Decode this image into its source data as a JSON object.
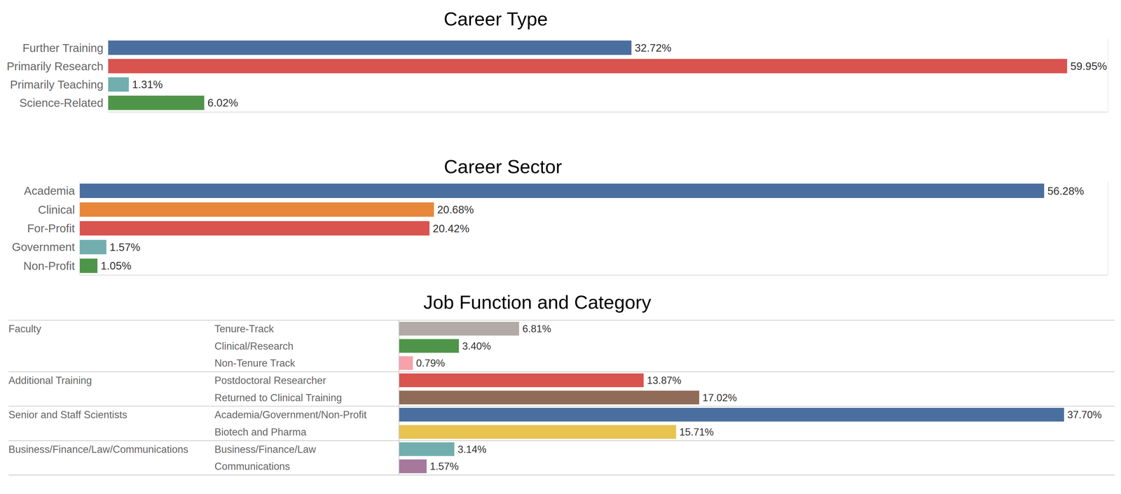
{
  "chart_data": [
    {
      "type": "bar",
      "title": "Career Type",
      "orientation": "horizontal",
      "categories": [
        "Further Training",
        "Primarily Research",
        "Primarily Teaching",
        "Science-Related"
      ],
      "values": [
        32.72,
        59.95,
        1.31,
        6.02
      ],
      "value_labels": [
        "32.72%",
        "59.95%",
        "1.31%",
        "6.02%"
      ],
      "colors": [
        "#4a6f9e",
        "#d9534f",
        "#72aeae",
        "#4f9549"
      ],
      "xlim": [
        0,
        62.5
      ],
      "xticks": [
        0,
        2.5,
        5,
        7.5,
        10,
        12.5,
        15,
        17.5,
        20,
        22.5,
        25,
        27.5,
        30,
        32.5,
        35,
        37.5,
        40,
        42.5,
        45,
        47.5,
        50,
        52.5,
        55,
        57.5,
        60,
        62.5
      ],
      "grid": true,
      "data_labels": true,
      "tick_labels": "y"
    },
    {
      "type": "bar",
      "title": "Career Sector",
      "orientation": "horizontal",
      "categories": [
        "Academia",
        "Clinical",
        "For-Profit",
        "Government",
        "Non-Profit"
      ],
      "values": [
        56.28,
        20.68,
        20.42,
        1.57,
        1.05
      ],
      "value_labels": [
        "56.28%",
        "20.68%",
        "20.42%",
        "1.57%",
        "1.05%"
      ],
      "colors": [
        "#4a6f9e",
        "#e8873a",
        "#d9534f",
        "#72aeae",
        "#4f9549"
      ],
      "xlim": [
        0,
        60
      ],
      "xticks": [
        0,
        2.5,
        5,
        7.5,
        10,
        12.5,
        15,
        17.5,
        20,
        22.5,
        25,
        27.5,
        30,
        32.5,
        35,
        37.5,
        40,
        42.5,
        45,
        47.5,
        50,
        52.5,
        55,
        57.5,
        60
      ],
      "grid": true,
      "data_labels": true,
      "tick_labels": "y"
    },
    {
      "type": "bar",
      "title": "Job Function and Category",
      "orientation": "horizontal",
      "group_labels": [
        "Faculty",
        null,
        null,
        "Additional Training",
        null,
        "Senior and Staff Scientists",
        null,
        "Business/Finance/Law/Communications",
        null
      ],
      "categories": [
        "Tenure-Track",
        "Clinical/Research",
        "Non-Tenure Track",
        "Postdoctoral Researcher",
        "Returned to Clinical Training",
        "Academia/Government/Non-Profit",
        "Biotech and Pharma",
        "Business/Finance/Law",
        "Communications"
      ],
      "values": [
        6.81,
        3.4,
        0.79,
        13.87,
        17.02,
        37.7,
        15.71,
        3.14,
        1.57
      ],
      "value_labels": [
        "6.81%",
        "3.40%",
        "0.79%",
        "13.87%",
        "17.02%",
        "37.70%",
        "15.71%",
        "3.14%",
        "1.57%"
      ],
      "colors": [
        "#b3a9a5",
        "#4f9549",
        "#f7a1aa",
        "#d9534f",
        "#8f6b58",
        "#4a6f9e",
        "#e8c350",
        "#72aeae",
        "#a6789c"
      ],
      "xlim": [
        0,
        40
      ],
      "xticks": [
        0,
        40
      ],
      "grid": false,
      "data_labels": true,
      "tick_labels": "y"
    }
  ]
}
